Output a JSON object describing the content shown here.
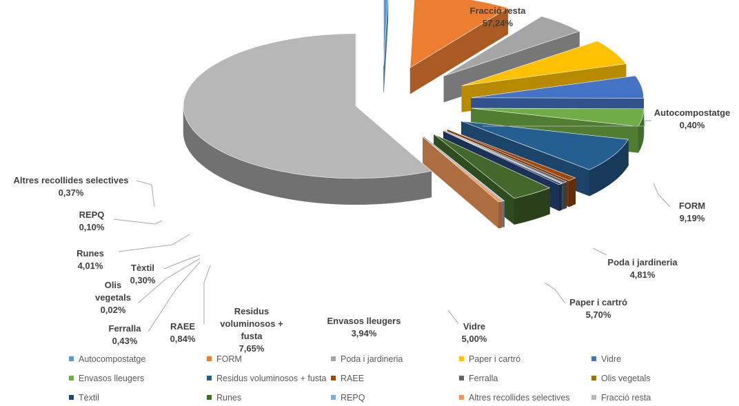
{
  "chart_data": {
    "type": "pie",
    "variant": "exploded-3d",
    "title": "",
    "slices": [
      {
        "name": "Autocompostatge",
        "label_lines": [
          "Autocompostatge"
        ],
        "value": 0.4,
        "display": "0,40%",
        "color": "#5b9bd5"
      },
      {
        "name": "FORM",
        "label_lines": [
          "FORM"
        ],
        "value": 9.19,
        "display": "9,19%",
        "color": "#ed7d31"
      },
      {
        "name": "Poda i jardineria",
        "label_lines": [
          "Poda i jardineria"
        ],
        "value": 4.81,
        "display": "4,81%",
        "color": "#a5a5a5"
      },
      {
        "name": "Paper i cartró",
        "label_lines": [
          "Paper i cartró"
        ],
        "value": 5.7,
        "display": "5,70%",
        "color": "#ffc000"
      },
      {
        "name": "Vidre",
        "label_lines": [
          "Vidre"
        ],
        "value": 5.0,
        "display": "5,00%",
        "color": "#4472c4"
      },
      {
        "name": "Envasos lleugers",
        "label_lines": [
          "Envasos lleugers"
        ],
        "value": 3.94,
        "display": "3,94%",
        "color": "#70ad47"
      },
      {
        "name": "Residus voluminosos + fusta",
        "label_lines": [
          "Residus",
          "voluminosos +",
          "fusta"
        ],
        "value": 7.65,
        "display": "7,65%",
        "color": "#255e91"
      },
      {
        "name": "RAEE",
        "label_lines": [
          "RAEE"
        ],
        "value": 0.84,
        "display": "0,84%",
        "color": "#9e480e"
      },
      {
        "name": "Ferralla",
        "label_lines": [
          "Ferralla"
        ],
        "value": 0.43,
        "display": "0,43%",
        "color": "#636363"
      },
      {
        "name": "Olis vegetals",
        "label_lines": [
          "Olis",
          "vegetals"
        ],
        "value": 0.02,
        "display": "0,02%",
        "color": "#997300"
      },
      {
        "name": "Tèxtil",
        "label_lines": [
          "Tèxtil"
        ],
        "value": 0.3,
        "display": "0,30%",
        "color": "#264478"
      },
      {
        "name": "Runes",
        "label_lines": [
          "Runes"
        ],
        "value": 4.01,
        "display": "4,01%",
        "color": "#43682b"
      },
      {
        "name": "REPQ",
        "label_lines": [
          "REPQ"
        ],
        "value": 0.1,
        "display": "0,10%",
        "color": "#7cafdd"
      },
      {
        "name": "Altres recollides selectives",
        "label_lines": [
          "Altres recollides selectives"
        ],
        "value": 0.37,
        "display": "0,37%",
        "color": "#f1975a"
      },
      {
        "name": "Fracció resta",
        "label_lines": [
          "Fracció resta"
        ],
        "value": 57.24,
        "display": "57,24%",
        "color": "#b7b7b7"
      }
    ],
    "legend_position": "bottom"
  }
}
